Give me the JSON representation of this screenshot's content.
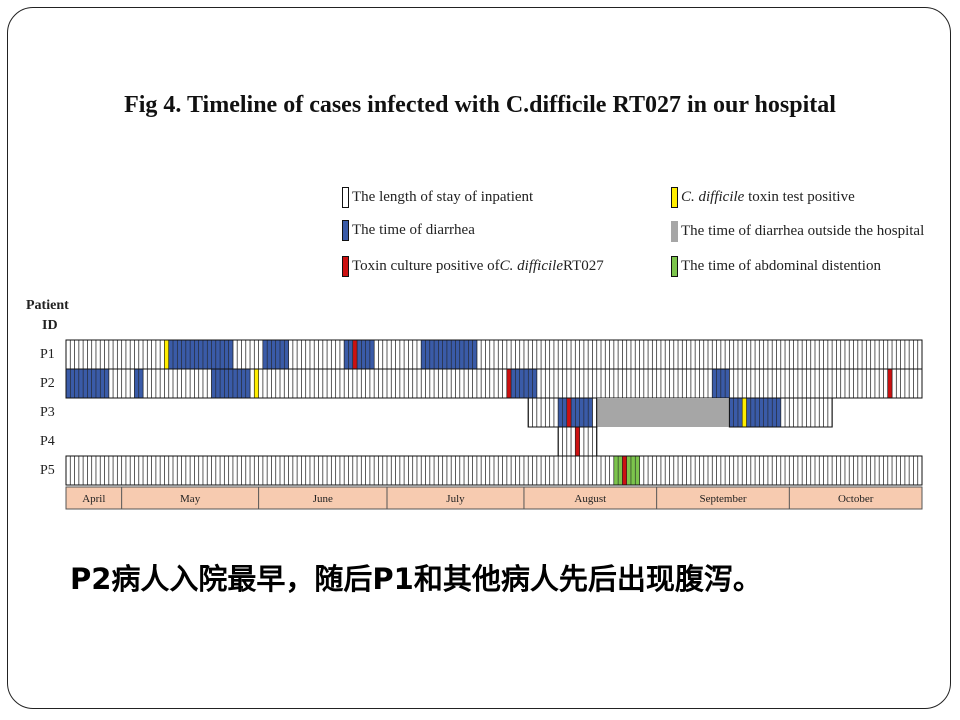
{
  "title": "Fig 4. Timeline of cases infected with C.difficile RT027 in our hospital",
  "caption": "P2病人入院最早，随后P1和其他病人先后出现腹泻。",
  "axis": {
    "patient_header_1": "Patient",
    "patient_header_2": "ID"
  },
  "legend": [
    {
      "key": "stay",
      "text": "The length of stay of inpatient",
      "color": "#ffffff"
    },
    {
      "key": "diarrhea",
      "text": "The time of diarrhea",
      "color": "#3a5ba8"
    },
    {
      "key": "culture",
      "text_pre": "Toxin culture positive of ",
      "text_italic": "C. difficile",
      "text_post": " RT027",
      "color": "#cc1111"
    },
    {
      "key": "toxin",
      "text_italic": "C. difficile",
      "text_post": " toxin test positive",
      "color": "#ffee00"
    },
    {
      "key": "outside",
      "text": "The time of diarrhea outside the hospital",
      "color": "#a6a6a6"
    },
    {
      "key": "distention",
      "text": "The time of abdominal distention",
      "color": "#7cc44c"
    }
  ],
  "chart_data": {
    "type": "timeline",
    "title": "Fig 4. Timeline of cases infected with C.difficile RT027 in our hospital",
    "ylabel": "Patient ID",
    "months": [
      "April",
      "May",
      "June",
      "July",
      "August",
      "September",
      "October"
    ],
    "month_color": "#f7cbb0",
    "patients": [
      {
        "id": "P1",
        "stay": [
          [
            0,
            200
          ]
        ],
        "events": [
          {
            "type": "toxin",
            "at": 23
          },
          {
            "type": "diarrhea",
            "range": [
              24,
              39
            ]
          },
          {
            "type": "diarrhea",
            "range": [
              46,
              52
            ]
          },
          {
            "type": "diarrhea",
            "range": [
              65,
              72
            ]
          },
          {
            "type": "culture",
            "at": 67
          },
          {
            "type": "diarrhea",
            "range": [
              83,
              96
            ]
          }
        ]
      },
      {
        "id": "P2",
        "stay": [
          [
            0,
            200
          ]
        ],
        "events": [
          {
            "type": "diarrhea",
            "range": [
              0,
              10
            ]
          },
          {
            "type": "diarrhea",
            "range": [
              16,
              18
            ]
          },
          {
            "type": "diarrhea",
            "range": [
              34,
              43
            ]
          },
          {
            "type": "toxin",
            "at": 44
          },
          {
            "type": "culture",
            "at": 103
          },
          {
            "type": "diarrhea",
            "range": [
              104,
              110
            ]
          },
          {
            "type": "diarrhea",
            "range": [
              151,
              155
            ]
          },
          {
            "type": "culture",
            "at": 192
          }
        ]
      },
      {
        "id": "P3",
        "stay": [
          [
            108,
            124
          ],
          [
            155,
            179
          ]
        ],
        "events": [
          {
            "type": "diarrhea",
            "range": [
              115,
              123
            ]
          },
          {
            "type": "culture",
            "at": 117
          },
          {
            "type": "outside",
            "range": [
              124,
              155
            ]
          },
          {
            "type": "diarrhea",
            "range": [
              155,
              167
            ]
          },
          {
            "type": "toxin",
            "at": 158
          }
        ]
      },
      {
        "id": "P4",
        "stay": [
          [
            115,
            124
          ]
        ],
        "events": [
          {
            "type": "culture",
            "at": 119
          }
        ]
      },
      {
        "id": "P5",
        "stay": [
          [
            0,
            200
          ]
        ],
        "events": [
          {
            "type": "distention",
            "range": [
              128,
              134
            ]
          },
          {
            "type": "culture",
            "at": 130
          }
        ]
      }
    ]
  }
}
